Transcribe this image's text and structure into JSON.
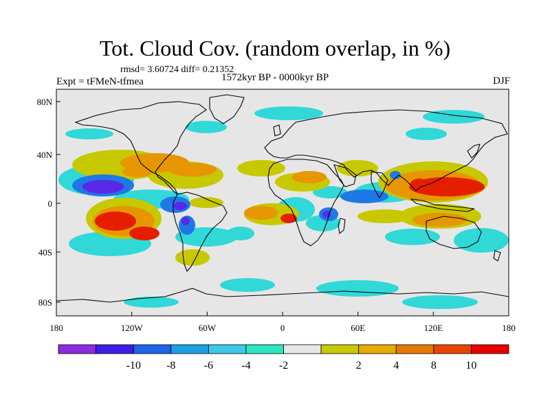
{
  "title": "Tot. Cloud Cov. (random overlap, in %)",
  "stats": "rmsd= 3.60724 diff= 0.21352",
  "experiment": "Expt = tFMeN-tfmea",
  "period": "1572kyr BP - 0000kyr BP",
  "season": "DJF",
  "lat_ticks": [
    "80N",
    "40N",
    "0",
    "40S",
    "80S"
  ],
  "lon_ticks": [
    "180",
    "120W",
    "60W",
    "0",
    "60E",
    "120E",
    "180"
  ],
  "colorbar": {
    "colors": [
      "#8a2be2",
      "#3c1ee6",
      "#1e64e6",
      "#1ea0e6",
      "#3cc8e6",
      "#2ee6c0",
      "#e6e6e6",
      "#c8c800",
      "#e6aa00",
      "#e67800",
      "#e64600",
      "#e60000"
    ],
    "labels": [
      "-10",
      "-8",
      "-6",
      "-4",
      "-2",
      "2",
      "4",
      "8",
      "10"
    ]
  },
  "colors": {
    "background": "#e6e6e6",
    "strong_neg": "#5a28e6",
    "neg": "#1e78e6",
    "mild_neg": "#30d8d8",
    "mild_pos": "#c8c800",
    "pos": "#e69600",
    "strong_pos": "#e61e00",
    "coast": "#000000"
  }
}
